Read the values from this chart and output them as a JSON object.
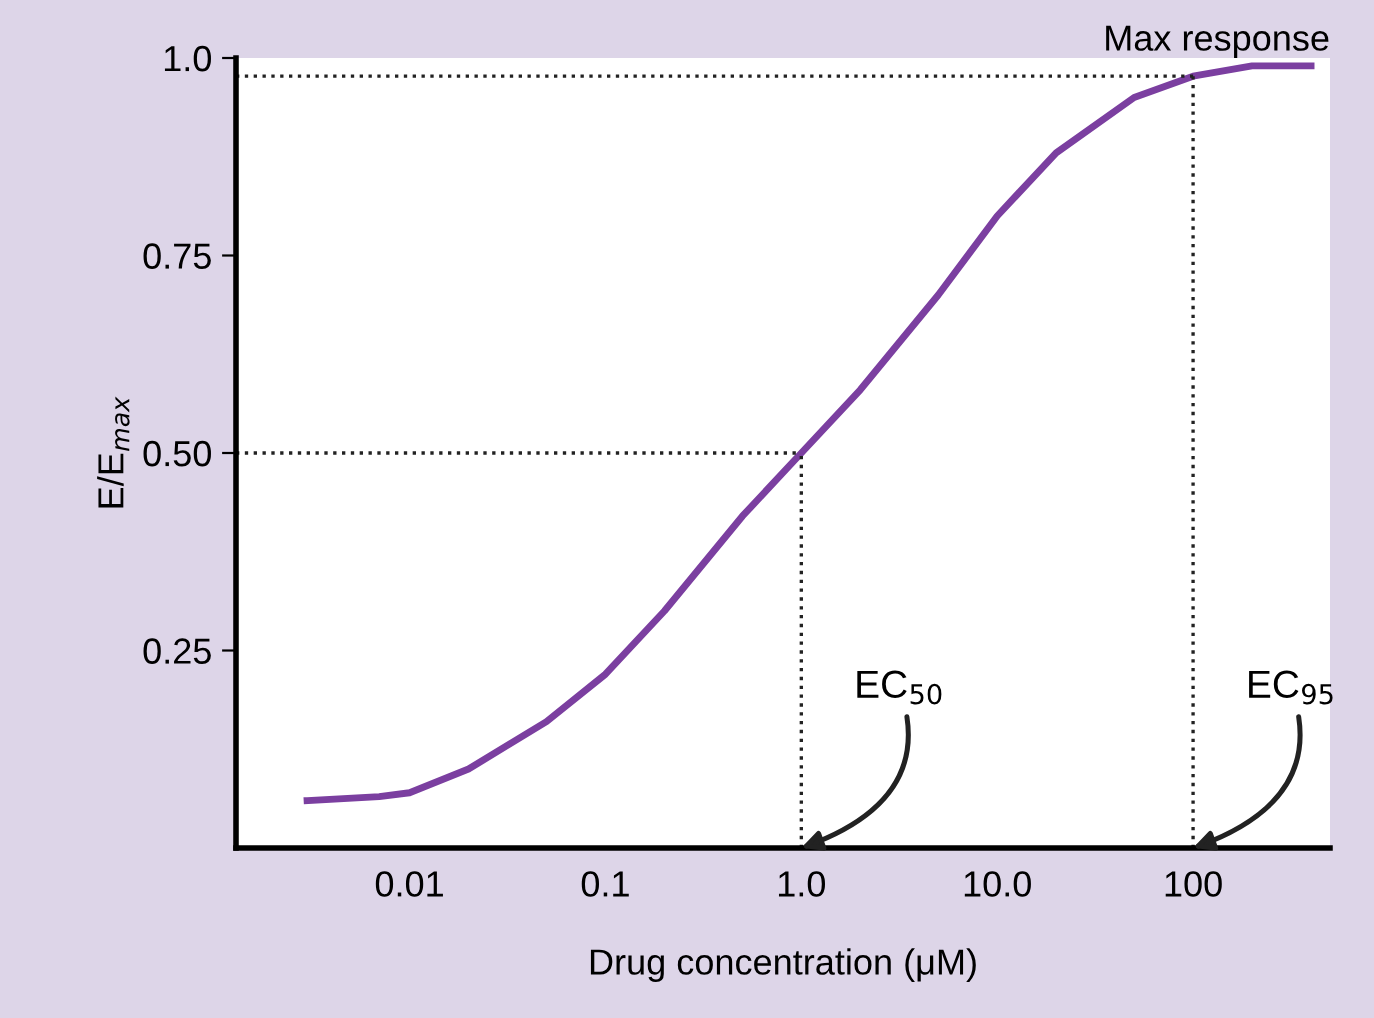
{
  "chart_data": {
    "type": "line",
    "xlabel": "Drug concentration (μM)",
    "ylabel": "E/E$_{max}$",
    "x": [
      0.003,
      0.007,
      0.01,
      0.02,
      0.05,
      0.1,
      0.2,
      0.5,
      1,
      2,
      5,
      10,
      20,
      50,
      100,
      200,
      400
    ],
    "series": [
      {
        "color": "#7b3fa0",
        "values": [
          0.06,
          0.065,
          0.07,
          0.1,
          0.16,
          0.22,
          0.3,
          0.42,
          0.5,
          0.58,
          0.7,
          0.8,
          0.88,
          0.95,
          0.977,
          0.99,
          0.99
        ]
      }
    ],
    "log": "x",
    "xlim": [
      0.0013,
      500
    ],
    "ylim": [
      0.0,
      1.0
    ],
    "xticks": [
      0.01,
      0.1,
      {
        "value": 1,
        "label": "1.0"
      },
      {
        "value": 10,
        "label": "10.0"
      },
      100
    ],
    "yticks": [
      0.25,
      {
        "value": 0.5,
        "label": "0.50"
      },
      0.75,
      {
        "value": 1.0,
        "label": "1.0"
      }
    ],
    "ref_lines": [
      {
        "axis": "y",
        "value": 0.5,
        "line_style": "dotted",
        "color": "#222222"
      },
      {
        "axis": "x",
        "value": 1,
        "line_style": "dotted",
        "color": "#222222"
      },
      {
        "axis": "y",
        "value": 0.977,
        "line_style": "dotted",
        "color": "#222222",
        "label": "Max response"
      },
      {
        "axis": "x",
        "value": 100,
        "line_style": "dotted",
        "color": "#222222"
      }
    ],
    "annotations": [
      {
        "text": "EC$_{50}$",
        "x": 1,
        "y": 0.0
      },
      {
        "text": "EC$_{95}$",
        "x": 100,
        "y": 0.0
      }
    ],
    "grid": false,
    "legend": false,
    "marker": "none",
    "line_style": "solid"
  }
}
